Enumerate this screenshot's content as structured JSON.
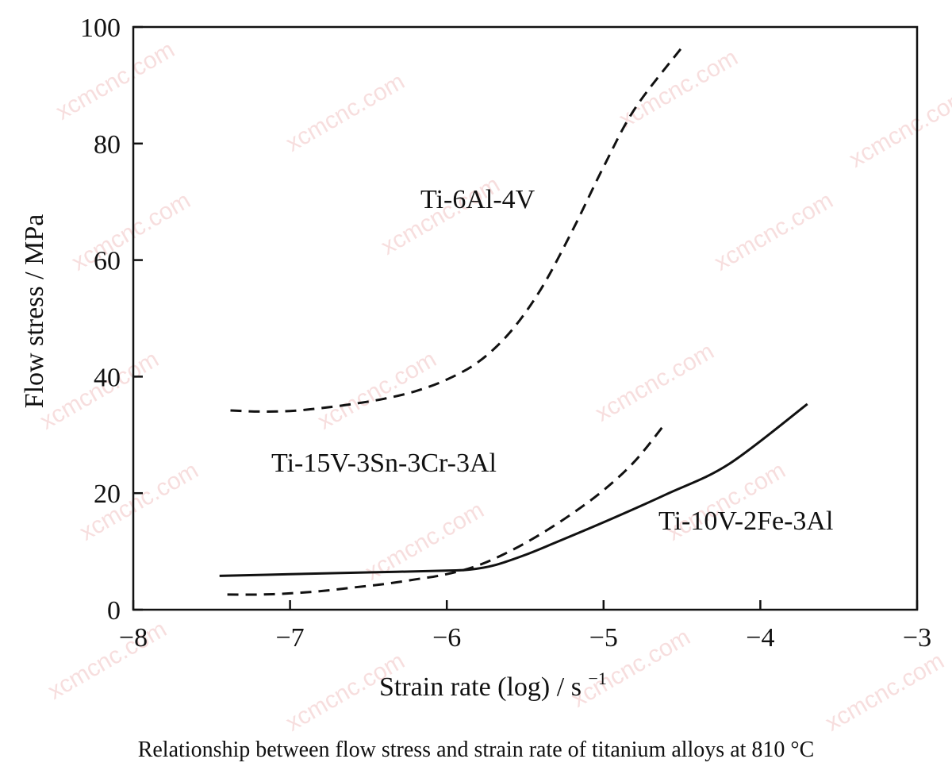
{
  "chart_data": {
    "type": "line",
    "xlabel": "Strain rate (log) / s",
    "xlabel_sup": "−1",
    "ylabel": "Flow stress / MPa",
    "xlim": [
      -8,
      -3
    ],
    "ylim": [
      0,
      100
    ],
    "x_ticks": [
      -8,
      -7,
      -6,
      -5,
      -4,
      -3
    ],
    "x_tick_labels": [
      "−8",
      "−7",
      "−6",
      "−5",
      "−4",
      "−3"
    ],
    "y_ticks": [
      0,
      20,
      40,
      60,
      80,
      100
    ],
    "y_tick_labels": [
      "0",
      "20",
      "40",
      "60",
      "80",
      "100"
    ],
    "grid": false,
    "series": [
      {
        "name": "Ti-6Al-4V",
        "style": "dashed",
        "points": [
          [
            -7.38,
            34.2
          ],
          [
            -7.2,
            34.0
          ],
          [
            -7.0,
            34.1
          ],
          [
            -6.8,
            34.6
          ],
          [
            -6.6,
            35.3
          ],
          [
            -6.4,
            36.2
          ],
          [
            -6.2,
            37.5
          ],
          [
            -6.0,
            39.5
          ],
          [
            -5.8,
            42.5
          ],
          [
            -5.6,
            47.5
          ],
          [
            -5.4,
            55.0
          ],
          [
            -5.2,
            65.0
          ],
          [
            -5.0,
            76.0
          ],
          [
            -4.8,
            86.0
          ],
          [
            -4.5,
            96.5
          ]
        ]
      },
      {
        "name": "Ti-15V-3Sn-3Cr-3Al",
        "style": "dashed",
        "points": [
          [
            -7.4,
            2.6
          ],
          [
            -7.2,
            2.6
          ],
          [
            -7.0,
            2.8
          ],
          [
            -6.8,
            3.2
          ],
          [
            -6.6,
            3.8
          ],
          [
            -6.4,
            4.4
          ],
          [
            -6.2,
            5.2
          ],
          [
            -6.0,
            6.1
          ],
          [
            -5.8,
            7.6
          ],
          [
            -5.6,
            10.0
          ],
          [
            -5.4,
            13.0
          ],
          [
            -5.2,
            16.5
          ],
          [
            -5.0,
            20.5
          ],
          [
            -4.8,
            25.5
          ],
          [
            -4.62,
            31.5
          ]
        ]
      },
      {
        "name": "Ti-10V-2Fe-3Al",
        "style": "solid",
        "points": [
          [
            -7.45,
            5.8
          ],
          [
            -7.0,
            6.1
          ],
          [
            -6.5,
            6.4
          ],
          [
            -6.0,
            6.7
          ],
          [
            -5.85,
            6.9
          ],
          [
            -5.7,
            7.6
          ],
          [
            -5.5,
            9.4
          ],
          [
            -5.3,
            11.6
          ],
          [
            -5.0,
            15.0
          ],
          [
            -4.6,
            19.8
          ],
          [
            -4.2,
            25.0
          ],
          [
            -3.7,
            35.3
          ]
        ]
      }
    ]
  },
  "labels": {
    "ti6al4v": "Ti-6Al-4V",
    "ti15v": "Ti-15V-3Sn-3Cr-3Al",
    "ti10v": "Ti-10V-2Fe-3Al"
  },
  "caption": "Relationship between flow stress and strain rate of titanium alloys at 810 °C",
  "watermark": "xcmcnc.com",
  "colors": {
    "line": "#111111",
    "watermark": "#f2c4c4"
  }
}
